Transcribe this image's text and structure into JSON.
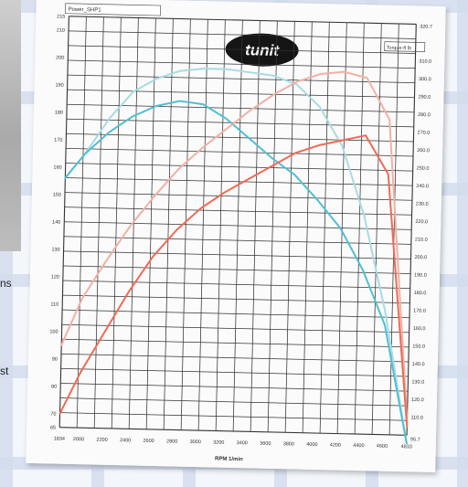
{
  "side_text": [
    "ns",
    "st"
  ],
  "chart_data": {
    "type": "line",
    "header_labels": [
      "Power_SHP1",
      "Torque-ft lb"
    ],
    "logo_text": "tunit",
    "xlabel": "RPM 1/min",
    "x_ticks": [
      "1834",
      "2000",
      "2200",
      "2400",
      "2600",
      "2800",
      "3000",
      "3200",
      "3400",
      "3600",
      "3800",
      "4000",
      "4200",
      "4400",
      "4600",
      "4810"
    ],
    "left_ticks": [
      "65",
      "70",
      "80",
      "90",
      "100",
      "110",
      "120",
      "130",
      "140",
      "150",
      "160",
      "170",
      "180",
      "190",
      "200",
      "210",
      "215"
    ],
    "right_ticks": [
      "110.0",
      "120.0",
      "130.0",
      "140.0",
      "150.0",
      "160.0",
      "170.0",
      "180.0",
      "190.0",
      "200.0",
      "210.0",
      "220.0",
      "230.0",
      "240.0",
      "250.0",
      "260.0",
      "270.0",
      "280.0",
      "290.0",
      "300.0",
      "310.0"
    ],
    "right_extremes": [
      "320.7",
      "95.7"
    ],
    "xlim": [
      1834,
      4810
    ],
    "left_ylim": [
      65,
      215
    ],
    "series": [
      {
        "color": "#a8dbe3",
        "axis": "left",
        "x": [
          1834,
          2000,
          2200,
          2400,
          2600,
          2800,
          3000,
          3200,
          3400,
          3600,
          3800,
          4000,
          4200,
          4400,
          4600,
          4810
        ],
        "values": [
          156,
          165,
          178,
          188,
          193,
          196,
          197,
          197,
          196,
          195,
          192,
          184,
          170,
          145,
          110,
          62
        ]
      },
      {
        "color": "#4fbfd3",
        "axis": "left",
        "x": [
          1834,
          2000,
          2200,
          2400,
          2600,
          2800,
          3000,
          3200,
          3400,
          3600,
          3800,
          4000,
          4200,
          4400,
          4600,
          4810
        ],
        "values": [
          156,
          165,
          173,
          179,
          183,
          185,
          184,
          179,
          172,
          165,
          159,
          150,
          140,
          125,
          105,
          62
        ]
      },
      {
        "color": "#f1b0a4",
        "axis": "left",
        "x": [
          1834,
          2000,
          2200,
          2400,
          2600,
          2800,
          3000,
          3200,
          3400,
          3600,
          3800,
          4000,
          4200,
          4400,
          4600,
          4810
        ],
        "values": [
          95,
          112,
          126,
          139,
          150,
          160,
          168,
          175,
          182,
          188,
          193,
          196,
          197,
          195,
          180,
          70
        ]
      },
      {
        "color": "#ef6a55",
        "axis": "left",
        "x": [
          1834,
          2000,
          2200,
          2400,
          2600,
          2800,
          3000,
          3200,
          3400,
          3600,
          3800,
          4000,
          4200,
          4400,
          4600,
          4810
        ],
        "values": [
          70,
          85,
          100,
          115,
          128,
          138,
          146,
          152,
          157,
          162,
          167,
          170,
          172,
          174,
          160,
          68
        ]
      }
    ]
  }
}
